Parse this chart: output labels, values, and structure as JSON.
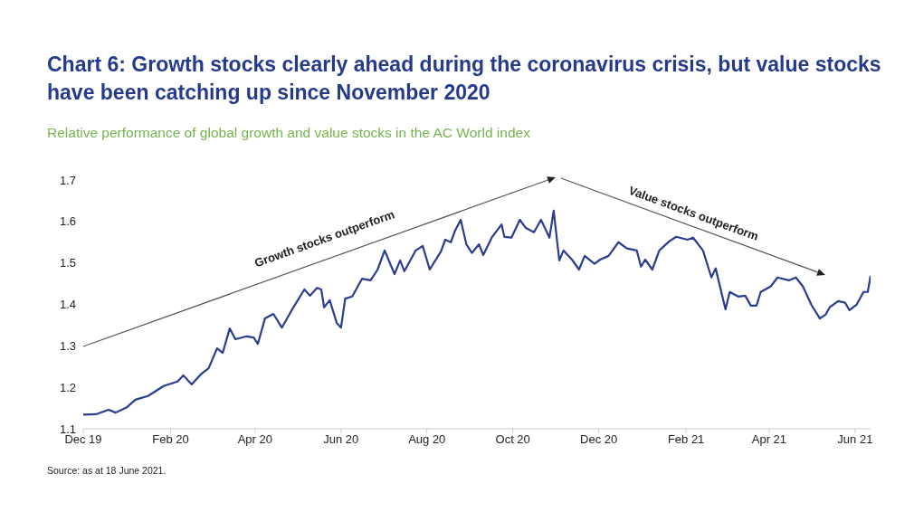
{
  "chart_data": {
    "type": "line",
    "title": "Chart 6: Growth stocks clearly ahead during the coronavirus crisis, but value stocks have been catching up since November 2020",
    "subtitle": "Relative performance of global growth and value stocks in the AC World index",
    "x": [
      "2019-12-01",
      "2019-12-10",
      "2019-12-19",
      "2019-12-24",
      "2020-01-01",
      "2020-01-07",
      "2020-01-16",
      "2020-01-27",
      "2020-02-06",
      "2020-02-10",
      "2020-02-16",
      "2020-02-23",
      "2020-02-28",
      "2020-03-05",
      "2020-03-09",
      "2020-03-14",
      "2020-03-18",
      "2020-03-26",
      "2020-03-31",
      "2020-04-03",
      "2020-04-08",
      "2020-04-14",
      "2020-04-20",
      "2020-04-27",
      "2020-05-06",
      "2020-05-10",
      "2020-05-15",
      "2020-05-18",
      "2020-05-20",
      "2020-05-24",
      "2020-05-29",
      "2020-06-01",
      "2020-06-04",
      "2020-06-09",
      "2020-06-16",
      "2020-06-22",
      "2020-06-27",
      "2020-07-02",
      "2020-07-09",
      "2020-07-13",
      "2020-07-16",
      "2020-07-24",
      "2020-07-29",
      "2020-08-03",
      "2020-08-11",
      "2020-08-14",
      "2020-08-18",
      "2020-08-21",
      "2020-08-25",
      "2020-08-29",
      "2020-09-02",
      "2020-09-07",
      "2020-09-10",
      "2020-09-16",
      "2020-09-23",
      "2020-09-25",
      "2020-09-30",
      "2020-10-06",
      "2020-10-10",
      "2020-10-16",
      "2020-10-21",
      "2020-10-27",
      "2020-10-30",
      "2020-11-03",
      "2020-11-06",
      "2020-11-12",
      "2020-11-17",
      "2020-11-21",
      "2020-11-28",
      "2020-12-02",
      "2020-12-08",
      "2020-12-15",
      "2020-12-21",
      "2020-12-28",
      "2020-12-31",
      "2021-01-03",
      "2021-01-08",
      "2021-01-13",
      "2021-01-20",
      "2021-01-25",
      "2021-02-02",
      "2021-02-06",
      "2021-02-13",
      "2021-02-19",
      "2021-02-22",
      "2021-03-01",
      "2021-03-04",
      "2021-03-10",
      "2021-03-15",
      "2021-03-19",
      "2021-03-23",
      "2021-03-26",
      "2021-04-02",
      "2021-04-07",
      "2021-04-15",
      "2021-04-20",
      "2021-04-25",
      "2021-05-01",
      "2021-05-07",
      "2021-05-11",
      "2021-05-14",
      "2021-05-20",
      "2021-05-25",
      "2021-05-28",
      "2021-06-02",
      "2021-06-07",
      "2021-06-10",
      "2021-06-12"
    ],
    "series": [
      {
        "color": "#2a3d8f",
        "values": [
          1.134,
          1.135,
          1.146,
          1.139,
          1.152,
          1.17,
          1.179,
          1.203,
          1.214,
          1.229,
          1.207,
          1.233,
          1.246,
          1.294,
          1.283,
          1.342,
          1.316,
          1.323,
          1.32,
          1.305,
          1.366,
          1.377,
          1.344,
          1.386,
          1.436,
          1.421,
          1.44,
          1.436,
          1.393,
          1.41,
          1.355,
          1.344,
          1.414,
          1.419,
          1.462,
          1.458,
          1.484,
          1.53,
          1.473,
          1.506,
          1.48,
          1.53,
          1.541,
          1.484,
          1.528,
          1.556,
          1.55,
          1.578,
          1.604,
          1.545,
          1.524,
          1.545,
          1.519,
          1.561,
          1.593,
          1.563,
          1.561,
          1.604,
          1.585,
          1.574,
          1.604,
          1.561,
          1.626,
          1.506,
          1.53,
          1.508,
          1.484,
          1.517,
          1.498,
          1.508,
          1.517,
          1.55,
          1.535,
          1.53,
          1.491,
          1.508,
          1.484,
          1.53,
          1.552,
          1.563,
          1.556,
          1.561,
          1.53,
          1.465,
          1.487,
          1.388,
          1.43,
          1.419,
          1.421,
          1.397,
          1.397,
          1.43,
          1.443,
          1.465,
          1.458,
          1.465,
          1.443,
          1.399,
          1.366,
          1.375,
          1.393,
          1.408,
          1.404,
          1.386,
          1.399,
          1.43,
          1.43,
          1.469
        ]
      }
    ],
    "xlim": [
      "2019-12-01",
      "2021-06-12"
    ],
    "xticks": [
      {
        "value": "2019-12-01",
        "label": "Dec 19"
      },
      {
        "value": "2020-02-01",
        "label": "Feb 20"
      },
      {
        "value": "2020-04-01",
        "label": "Apr 20"
      },
      {
        "value": "2020-06-01",
        "label": "Jun 20"
      },
      {
        "value": "2020-08-01",
        "label": "Aug 20"
      },
      {
        "value": "2020-10-01",
        "label": "Oct 20"
      },
      {
        "value": "2020-12-01",
        "label": "Dec 20"
      },
      {
        "value": "2021-02-01",
        "label": "Feb 21"
      },
      {
        "value": "2021-04-01",
        "label": "Apr 21"
      },
      {
        "value": "2021-06-01",
        "label": "Jun 21"
      }
    ],
    "ylim": [
      1.1,
      1.7
    ],
    "yticks": [
      1.1,
      1.2,
      1.3,
      1.4,
      1.5,
      1.6,
      1.7
    ],
    "grid": false,
    "legend": false,
    "marker": "none",
    "line_style": "solid",
    "annotations": [
      "Growth stocks outperform",
      "Value stocks outperform",
      "Source: as at 18 June 2021."
    ]
  }
}
